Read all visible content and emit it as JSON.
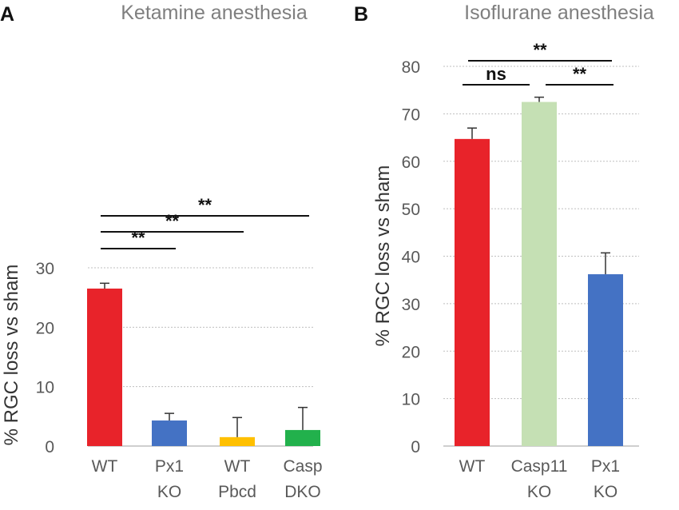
{
  "chart_data": [
    {
      "type": "bar",
      "panel_label": "A",
      "title": "Ketamine anesthesia",
      "xlabel": "",
      "ylabel": "% RGC loss vs sham",
      "ylim": [
        0,
        30
      ],
      "yticks": [
        0,
        10,
        20,
        30
      ],
      "grid": true,
      "categories": [
        [
          "WT"
        ],
        [
          "Px1",
          "KO"
        ],
        [
          "WT",
          "Pbcd"
        ],
        [
          "Casp",
          "DKO"
        ]
      ],
      "values": [
        26.5,
        4.3,
        1.5,
        2.7
      ],
      "errors": [
        0.9,
        1.2,
        3.3,
        3.8
      ],
      "colors": [
        "#e8232a",
        "#4472c4",
        "#ffc000",
        "#22b14c"
      ],
      "significance": [
        {
          "from": 0,
          "to": 1,
          "label": "**"
        },
        {
          "from": 0,
          "to": 2,
          "label": "**"
        },
        {
          "from": 0,
          "to": 3,
          "label": "**"
        }
      ]
    },
    {
      "type": "bar",
      "panel_label": "B",
      "title": "Isoflurane anesthesia",
      "xlabel": "",
      "ylabel": "% RGC loss vs sham",
      "ylim": [
        0,
        80
      ],
      "yticks": [
        0,
        10,
        20,
        30,
        40,
        50,
        60,
        70,
        80
      ],
      "grid": true,
      "categories": [
        [
          "WT"
        ],
        [
          "Casp11",
          "KO"
        ],
        [
          "Px1",
          "KO"
        ]
      ],
      "values": [
        64.7,
        72.5,
        36.2
      ],
      "errors": [
        2.3,
        1.0,
        4.5
      ],
      "colors": [
        "#e8232a",
        "#c5e0b4",
        "#4472c4"
      ],
      "significance": [
        {
          "from": 0,
          "to": 2,
          "label": "**"
        },
        {
          "from": 0,
          "to": 1,
          "label": "ns"
        },
        {
          "from": 1,
          "to": 2,
          "label": "**"
        }
      ]
    }
  ]
}
